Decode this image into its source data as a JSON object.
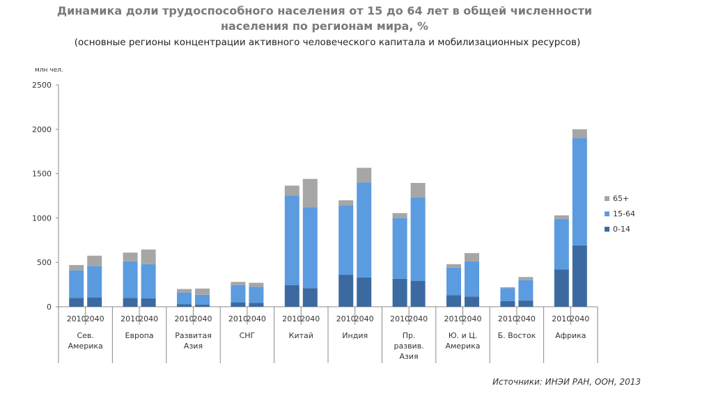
{
  "title_line1": "Динамика доли трудоспособного населения от 15 до 64 лет в общей численности",
  "title_line2": "населения по регионам мира, %",
  "subtitle": "(основные регионы концентрации активного человеческого капитала и мобилизационных ресурсов)",
  "y_unit": "млн чел.",
  "source": "Источники: ИНЭИ РАН, ООН, 2013",
  "colors": {
    "0-14": "#3c6aa0",
    "15-64": "#5b9be0",
    "65+": "#a6a6a6"
  },
  "chart_data": {
    "type": "bar",
    "stacked": true,
    "ylim": [
      0,
      2500
    ],
    "yticks": [
      0,
      500,
      1000,
      1500,
      2000,
      2500
    ],
    "years": [
      "2010",
      "2040"
    ],
    "legend_position": "right",
    "groups": [
      {
        "label": [
          "Сев.",
          "Америка"
        ],
        "bars": [
          {
            "year": "2010",
            "v0_14": 100,
            "v15_64": 310,
            "v65": 60
          },
          {
            "year": "2040",
            "v0_14": 105,
            "v15_64": 355,
            "v65": 115
          }
        ]
      },
      {
        "label": [
          "Европа"
        ],
        "bars": [
          {
            "year": "2010",
            "v0_14": 100,
            "v15_64": 410,
            "v65": 100
          },
          {
            "year": "2040",
            "v0_14": 95,
            "v15_64": 385,
            "v65": 165
          }
        ]
      },
      {
        "label": [
          "Развитая",
          "Азия"
        ],
        "bars": [
          {
            "year": "2010",
            "v0_14": 30,
            "v15_64": 130,
            "v65": 40
          },
          {
            "year": "2040",
            "v0_14": 25,
            "v15_64": 110,
            "v65": 70
          }
        ]
      },
      {
        "label": [
          "СНГ"
        ],
        "bars": [
          {
            "year": "2010",
            "v0_14": 50,
            "v15_64": 195,
            "v65": 35
          },
          {
            "year": "2040",
            "v0_14": 45,
            "v15_64": 180,
            "v65": 45
          }
        ]
      },
      {
        "label": [
          "Китай"
        ],
        "bars": [
          {
            "year": "2010",
            "v0_14": 245,
            "v15_64": 1005,
            "v65": 115
          },
          {
            "year": "2040",
            "v0_14": 210,
            "v15_64": 910,
            "v65": 320
          }
        ]
      },
      {
        "label": [
          "Индия"
        ],
        "bars": [
          {
            "year": "2010",
            "v0_14": 360,
            "v15_64": 780,
            "v65": 60
          },
          {
            "year": "2040",
            "v0_14": 330,
            "v15_64": 1070,
            "v65": 165
          }
        ]
      },
      {
        "label": [
          "Пр.",
          "развив.",
          "Азия"
        ],
        "bars": [
          {
            "year": "2010",
            "v0_14": 315,
            "v15_64": 685,
            "v65": 55
          },
          {
            "year": "2040",
            "v0_14": 290,
            "v15_64": 940,
            "v65": 165
          }
        ]
      },
      {
        "label": [
          "Ю. и Ц.",
          "Америка"
        ],
        "bars": [
          {
            "year": "2010",
            "v0_14": 130,
            "v15_64": 310,
            "v65": 40
          },
          {
            "year": "2040",
            "v0_14": 115,
            "v15_64": 395,
            "v65": 95
          }
        ]
      },
      {
        "label": [
          "Б. Восток"
        ],
        "bars": [
          {
            "year": "2010",
            "v0_14": 65,
            "v15_64": 145,
            "v65": 10
          },
          {
            "year": "2040",
            "v0_14": 70,
            "v15_64": 230,
            "v65": 35
          }
        ]
      },
      {
        "label": [
          "Африка"
        ],
        "bars": [
          {
            "year": "2010",
            "v0_14": 420,
            "v15_64": 570,
            "v65": 40
          },
          {
            "year": "2040",
            "v0_14": 690,
            "v15_64": 1210,
            "v65": 100
          }
        ]
      }
    ],
    "legend": [
      {
        "key": "65+",
        "label": "65+"
      },
      {
        "key": "15-64",
        "label": "15-64"
      },
      {
        "key": "0-14",
        "label": "0-14"
      }
    ]
  }
}
